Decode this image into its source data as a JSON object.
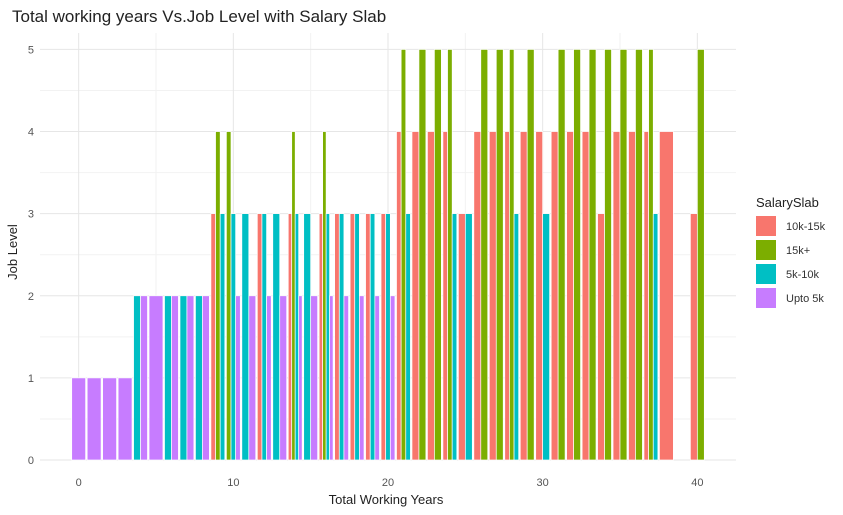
{
  "chart_data": {
    "type": "bar",
    "title": "Total working years Vs.Job Level with Salary Slab",
    "xlabel": "Total Working Years",
    "ylabel": "Job Level",
    "xlim": [
      -2.5,
      42.5
    ],
    "ylim": [
      0,
      5.2
    ],
    "x_ticks": [
      0,
      10,
      20,
      30,
      40
    ],
    "y_ticks": [
      0,
      1,
      2,
      3,
      4,
      5
    ],
    "grid": true,
    "legend_position": "right",
    "legend_title": "SalarySlab",
    "series": [
      {
        "name": "10k-15k",
        "color": "#F8766D",
        "points": [
          [
            9,
            3
          ],
          [
            12,
            3
          ],
          [
            14,
            3
          ],
          [
            16,
            3
          ],
          [
            17,
            3
          ],
          [
            18,
            3
          ],
          [
            19,
            3
          ],
          [
            20,
            3
          ],
          [
            21,
            4
          ],
          [
            22,
            4
          ],
          [
            23,
            4
          ],
          [
            24,
            4
          ],
          [
            25,
            3
          ],
          [
            26,
            4
          ],
          [
            27,
            4
          ],
          [
            28,
            4
          ],
          [
            29,
            4
          ],
          [
            30,
            4
          ],
          [
            31,
            4
          ],
          [
            32,
            4
          ],
          [
            33,
            4
          ],
          [
            34,
            3
          ],
          [
            35,
            4
          ],
          [
            36,
            4
          ],
          [
            37,
            4
          ],
          [
            38,
            4
          ],
          [
            40,
            3
          ]
        ]
      },
      {
        "name": "15k+",
        "color": "#7CAE00",
        "points": [
          [
            9,
            4
          ],
          [
            10,
            4
          ],
          [
            14,
            4
          ],
          [
            16,
            4
          ],
          [
            21,
            5
          ],
          [
            22,
            5
          ],
          [
            23,
            5
          ],
          [
            24,
            5
          ],
          [
            26,
            5
          ],
          [
            27,
            5
          ],
          [
            28,
            5
          ],
          [
            29,
            5
          ],
          [
            31,
            5
          ],
          [
            32,
            5
          ],
          [
            33,
            5
          ],
          [
            34,
            5
          ],
          [
            35,
            5
          ],
          [
            36,
            5
          ],
          [
            37,
            5
          ],
          [
            40,
            5
          ]
        ]
      },
      {
        "name": "5k-10k",
        "color": "#00BFC4",
        "points": [
          [
            4,
            2
          ],
          [
            6,
            2
          ],
          [
            7,
            2
          ],
          [
            8,
            2
          ],
          [
            9,
            3
          ],
          [
            10,
            3
          ],
          [
            11,
            3
          ],
          [
            12,
            3
          ],
          [
            13,
            3
          ],
          [
            14,
            3
          ],
          [
            15,
            3
          ],
          [
            16,
            3
          ],
          [
            17,
            3
          ],
          [
            18,
            3
          ],
          [
            19,
            3
          ],
          [
            20,
            3
          ],
          [
            21,
            3
          ],
          [
            24,
            3
          ],
          [
            25,
            3
          ],
          [
            28,
            3
          ],
          [
            30,
            3
          ],
          [
            37,
            3
          ]
        ]
      },
      {
        "name": "Upto 5k",
        "color": "#C77CFF",
        "points": [
          [
            0,
            1
          ],
          [
            1,
            1
          ],
          [
            2,
            1
          ],
          [
            3,
            1
          ],
          [
            4,
            2
          ],
          [
            5,
            2
          ],
          [
            6,
            2
          ],
          [
            7,
            2
          ],
          [
            8,
            2
          ],
          [
            10,
            2
          ],
          [
            11,
            2
          ],
          [
            12,
            2
          ],
          [
            13,
            2
          ],
          [
            14,
            2
          ],
          [
            15,
            2
          ],
          [
            16,
            2
          ],
          [
            17,
            2
          ],
          [
            18,
            2
          ],
          [
            19,
            2
          ],
          [
            20,
            2
          ]
        ]
      }
    ]
  }
}
